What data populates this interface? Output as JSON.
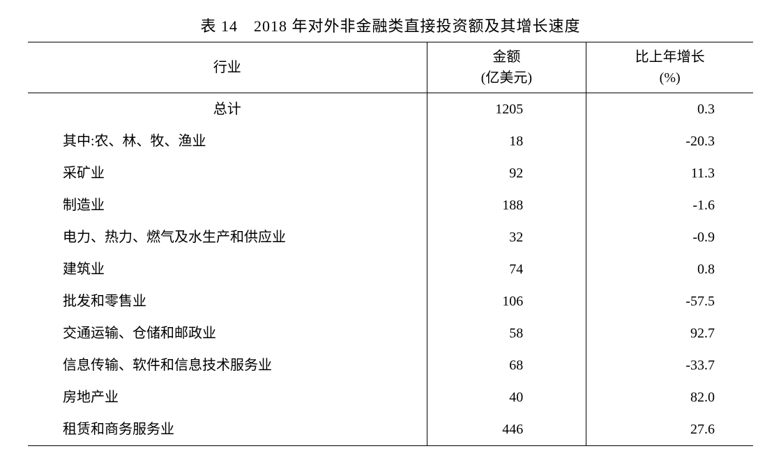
{
  "caption": "表 14　2018 年对外非金融类直接投资额及其增长速度",
  "columns": {
    "industry": "行业",
    "amount": "金额\n(亿美元)",
    "growth": "比上年增长\n(%)"
  },
  "prefix": "其中:",
  "total_row": {
    "label": "总计",
    "amount": "1205",
    "growth": "0.3"
  },
  "rows": [
    {
      "label": "农、林、牧、渔业",
      "amount": "18",
      "growth": "-20.3"
    },
    {
      "label": "采矿业",
      "amount": "92",
      "growth": "11.3"
    },
    {
      "label": "制造业",
      "amount": "188",
      "growth": "-1.6"
    },
    {
      "label": "电力、热力、燃气及水生产和供应业",
      "amount": "32",
      "growth": "-0.9"
    },
    {
      "label": "建筑业",
      "amount": "74",
      "growth": "0.8"
    },
    {
      "label": "批发和零售业",
      "amount": "106",
      "growth": "-57.5"
    },
    {
      "label": "交通运输、仓储和邮政业",
      "amount": "58",
      "growth": "92.7"
    },
    {
      "label": "信息传输、软件和信息技术服务业",
      "amount": "68",
      "growth": "-33.7"
    },
    {
      "label": "房地产业",
      "amount": "40",
      "growth": "82.0"
    },
    {
      "label": "租赁和商务服务业",
      "amount": "446",
      "growth": "27.6"
    }
  ],
  "style": {
    "font_family": "SimSun",
    "caption_fontsize": 22,
    "body_fontsize": 20,
    "text_color": "#000000",
    "background_color": "#ffffff",
    "border_color": "#000000",
    "column_widths_pct": [
      55,
      22,
      23
    ],
    "line_height": 1.7
  }
}
